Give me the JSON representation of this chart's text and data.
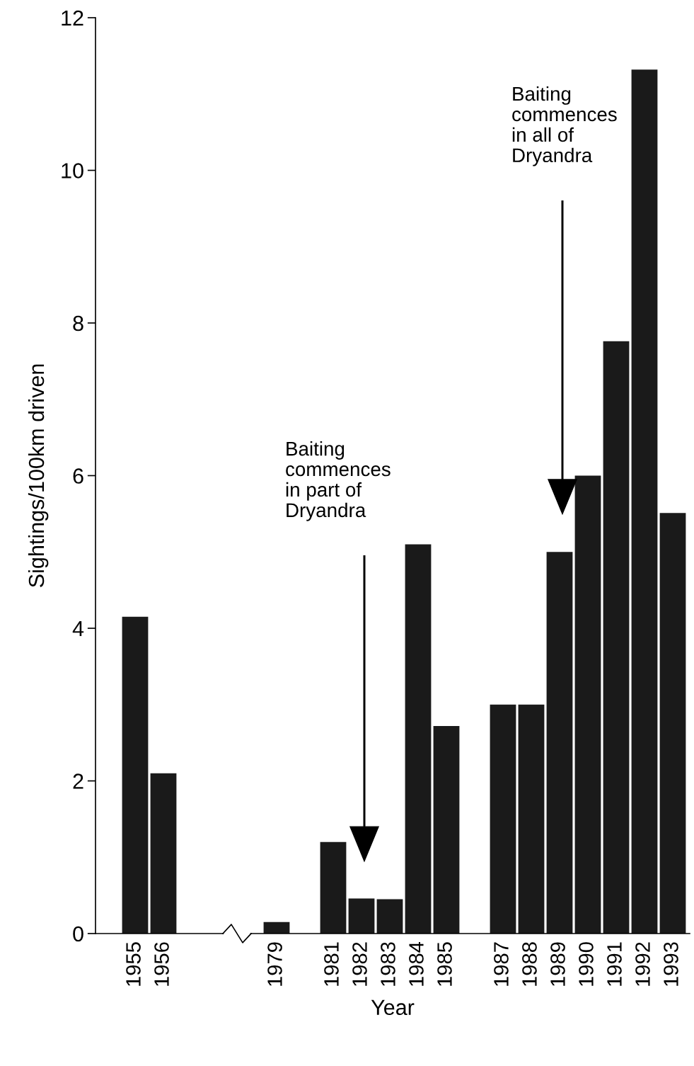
{
  "chart_data": {
    "type": "bar",
    "xlabel": "Year",
    "ylabel": "Sightings/100km driven",
    "categories": [
      "1955",
      "1956",
      null,
      null,
      null,
      "1979",
      null,
      "1981",
      "1982",
      "1983",
      "1984",
      "1985",
      null,
      "1987",
      "1988",
      "1989",
      "1990",
      "1991",
      "1992",
      "1993"
    ],
    "values": [
      4.15,
      2.1,
      null,
      null,
      null,
      0.15,
      null,
      1.2,
      0.46,
      0.45,
      5.1,
      2.72,
      null,
      3.0,
      3.0,
      5.0,
      6.0,
      7.76,
      11.32,
      5.51
    ],
    "color": "#1a1a1a",
    "ylim": [
      0,
      12
    ],
    "yticks": [
      0,
      2,
      4,
      6,
      8,
      10,
      12
    ],
    "grid": false,
    "legend": false,
    "annotations": [
      "Baiting\ncommences\nin part of\nDryandra",
      "Baiting\ncommences\nin all of\nDryandra"
    ]
  }
}
